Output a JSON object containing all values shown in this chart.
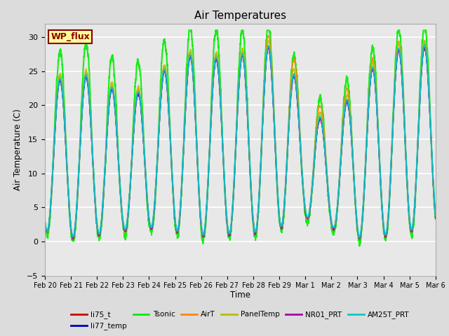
{
  "title": "Air Temperatures",
  "ylabel": "Air Temperature (C)",
  "xlabel": "Time",
  "ylim": [
    -5,
    32
  ],
  "yticks": [
    -5,
    0,
    5,
    10,
    15,
    20,
    25,
    30
  ],
  "annotation_text": "WP_flux",
  "annotation_color": "#8B0000",
  "annotation_bg": "#FFFF99",
  "annotation_border": "#8B0000",
  "series_order": [
    "li75_t",
    "li77_temp",
    "Tsonic",
    "AirT",
    "PanelTemp",
    "NR01_PRT",
    "AM25T_PRT"
  ],
  "series": {
    "li75_t": {
      "color": "#CC0000",
      "lw": 1.2
    },
    "li77_temp": {
      "color": "#0000BB",
      "lw": 1.2
    },
    "Tsonic": {
      "color": "#00EE00",
      "lw": 1.5
    },
    "AirT": {
      "color": "#FF8800",
      "lw": 1.2
    },
    "PanelTemp": {
      "color": "#BBBB00",
      "lw": 1.2
    },
    "NR01_PRT": {
      "color": "#AA00AA",
      "lw": 1.2
    },
    "AM25T_PRT": {
      "color": "#00CCCC",
      "lw": 1.5
    }
  },
  "legend_order": [
    "li75_t",
    "li77_temp",
    "Tsonic",
    "AirT",
    "PanelTemp",
    "NR01_PRT",
    "AM25T_PRT"
  ],
  "bg_color": "#DCDCDC",
  "plot_bg": "#E8E8E8",
  "n_days": 15,
  "n_pts_per_day": 288,
  "figsize": [
    6.4,
    4.8
  ],
  "dpi": 100
}
